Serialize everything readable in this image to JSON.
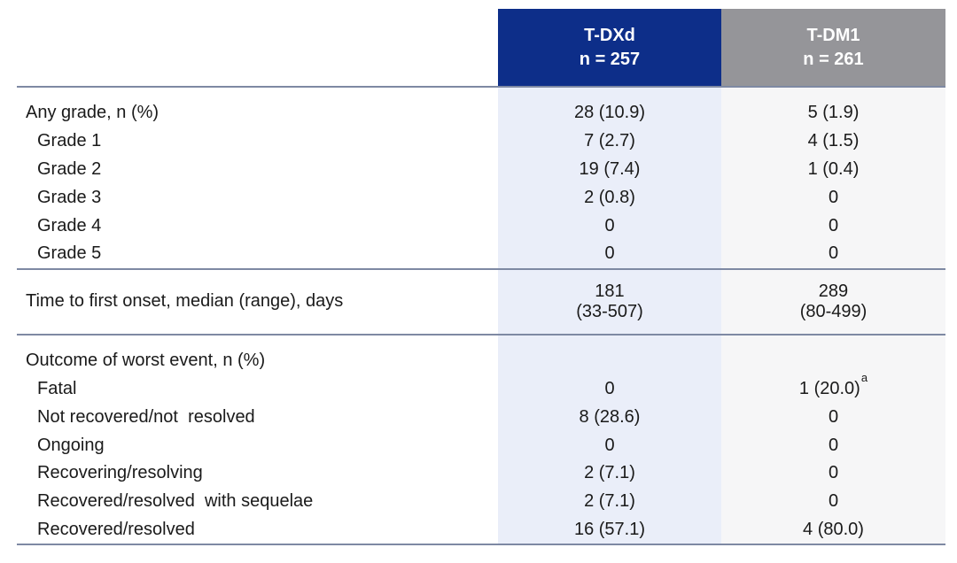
{
  "colors": {
    "page_bg": "#ffffff",
    "tdxd_header_bg": "#0d2e89",
    "tdm1_header_bg": "#959599",
    "header_text": "#ffffff",
    "tdxd_column_bg": "#eaeef9",
    "tdm1_column_bg": "#f6f6f7",
    "divider": "#7e89a3",
    "body_text": "#1a1a1a"
  },
  "table": {
    "columns": [
      {
        "id": "tdxd",
        "title": "T-DXd",
        "subtitle": "n = 257"
      },
      {
        "id": "tdm1",
        "title": "T-DM1",
        "subtitle": "n = 261"
      }
    ],
    "sections": [
      {
        "rows": [
          {
            "label": "Any grade, n (%)",
            "indent": false,
            "values": [
              {
                "text": "28 (10.9)"
              },
              {
                "text": "5 (1.9)"
              }
            ]
          },
          {
            "label": "Grade 1",
            "indent": true,
            "values": [
              {
                "text": "7 (2.7)"
              },
              {
                "text": "4 (1.5)"
              }
            ]
          },
          {
            "label": "Grade 2",
            "indent": true,
            "values": [
              {
                "text": "19 (7.4)"
              },
              {
                "text": "1 (0.4)"
              }
            ]
          },
          {
            "label": "Grade 3",
            "indent": true,
            "values": [
              {
                "text": "2 (0.8)"
              },
              {
                "text": "0"
              }
            ]
          },
          {
            "label": "Grade 4",
            "indent": true,
            "values": [
              {
                "text": "0"
              },
              {
                "text": "0"
              }
            ]
          },
          {
            "label": "Grade 5",
            "indent": true,
            "values": [
              {
                "text": "0"
              },
              {
                "text": "0"
              }
            ]
          }
        ]
      },
      {
        "tall": true,
        "rows": [
          {
            "label": "Time to first onset, median (range), days",
            "indent": false,
            "values": [
              {
                "lines": [
                  "181",
                  "(33-507)"
                ]
              },
              {
                "lines": [
                  "289",
                  "(80-499)"
                ]
              }
            ]
          }
        ]
      },
      {
        "rows": [
          {
            "label": "Outcome of worst event, n (%)",
            "indent": false,
            "values": [
              {
                "text": ""
              },
              {
                "text": ""
              }
            ]
          },
          {
            "label": "Fatal",
            "indent": true,
            "values": [
              {
                "text": "0"
              },
              {
                "text": "1 (20.0)",
                "sup": "a"
              }
            ]
          },
          {
            "label": "Not recovered/not  resolved",
            "indent": true,
            "values": [
              {
                "text": "8 (28.6)"
              },
              {
                "text": "0"
              }
            ]
          },
          {
            "label": "Ongoing",
            "indent": true,
            "values": [
              {
                "text": "0"
              },
              {
                "text": "0"
              }
            ]
          },
          {
            "label": "Recovering/resolving",
            "indent": true,
            "values": [
              {
                "text": "2 (7.1)"
              },
              {
                "text": "0"
              }
            ]
          },
          {
            "label": "Recovered/resolved  with sequelae",
            "indent": true,
            "values": [
              {
                "text": "2 (7.1)"
              },
              {
                "text": "0"
              }
            ]
          },
          {
            "label": "Recovered/resolved",
            "indent": true,
            "values": [
              {
                "text": "16 (57.1)"
              },
              {
                "text": "4 (80.0)"
              }
            ]
          }
        ]
      }
    ]
  }
}
